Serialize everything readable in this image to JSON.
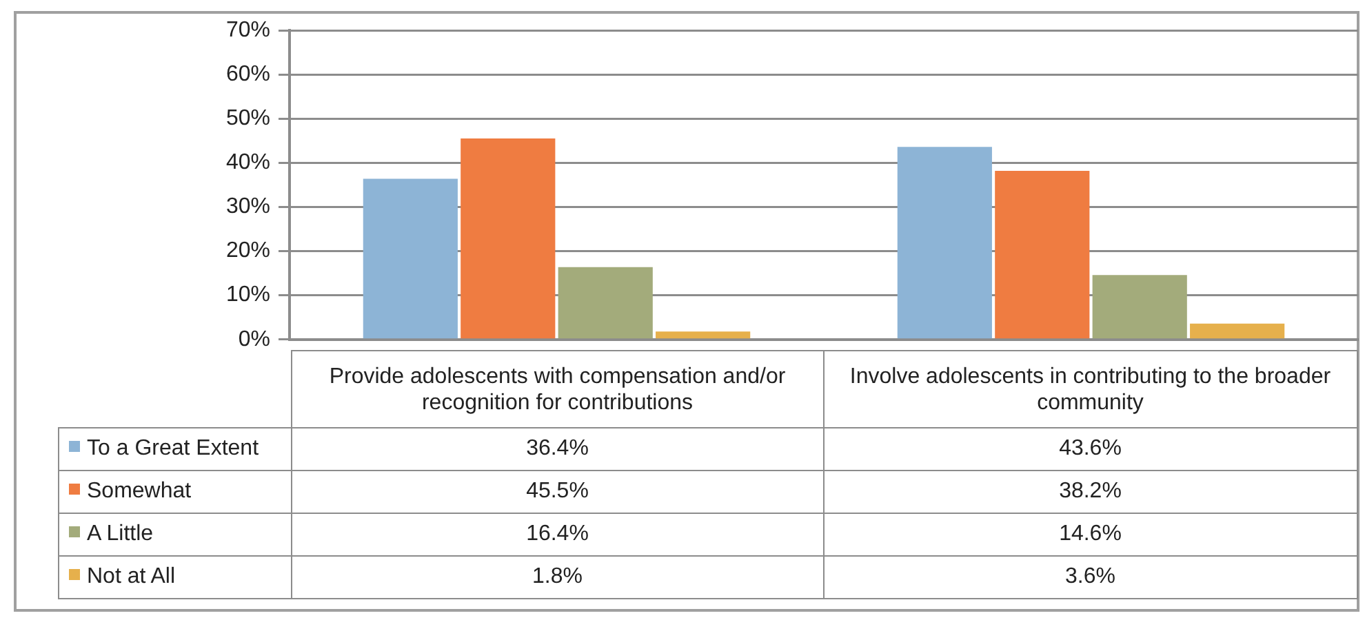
{
  "chart_data": {
    "type": "bar",
    "categories": [
      "Provide adolescents with compensation and/or recognition for contributions",
      "Involve adolescents in contributing to the broader community"
    ],
    "series": [
      {
        "name": "To a Great Extent",
        "color": "#8db4d6",
        "values": [
          36.4,
          43.6
        ],
        "value_labels": [
          "36.4%",
          "43.6%"
        ]
      },
      {
        "name": "Somewhat",
        "color": "#ef7c41",
        "values": [
          45.5,
          38.2
        ],
        "value_labels": [
          "45.5%",
          "38.2%"
        ]
      },
      {
        "name": "A Little",
        "color": "#a3ab7b",
        "values": [
          16.4,
          14.6
        ],
        "value_labels": [
          "16.4%",
          "14.6%"
        ]
      },
      {
        "name": "Not at All",
        "color": "#e6b04c",
        "values": [
          1.8,
          3.6
        ],
        "value_labels": [
          "1.8%",
          "3.6%"
        ]
      }
    ],
    "ylim": [
      0,
      70
    ],
    "yticks": [
      {
        "value": 0,
        "label": "0%"
      },
      {
        "value": 10,
        "label": "10%"
      },
      {
        "value": 20,
        "label": "20%"
      },
      {
        "value": 30,
        "label": "30%"
      },
      {
        "value": 40,
        "label": "40%"
      },
      {
        "value": 50,
        "label": "50%"
      },
      {
        "value": 60,
        "label": "60%"
      },
      {
        "value": 70,
        "label": "70%"
      }
    ],
    "grid": "y",
    "legend": "bottom"
  }
}
